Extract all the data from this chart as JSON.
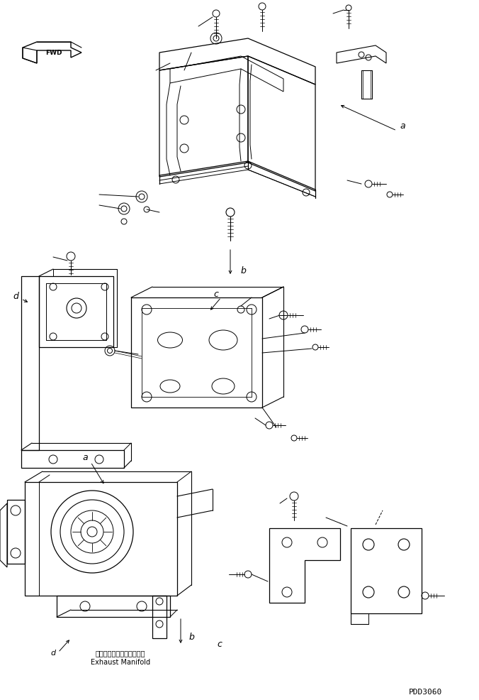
{
  "bg_color": "#ffffff",
  "line_color": "#000000",
  "fig_width": 6.76,
  "fig_height": 9.87,
  "dpi": 100,
  "watermark": "PDD3060",
  "fwd_label": "FWD",
  "label_a": "a",
  "label_b": "b",
  "label_c": "c",
  "label_d": "d",
  "exhaust_jp": "エキゾーストマニホールド",
  "exhaust_en": "Exhaust Manifold"
}
